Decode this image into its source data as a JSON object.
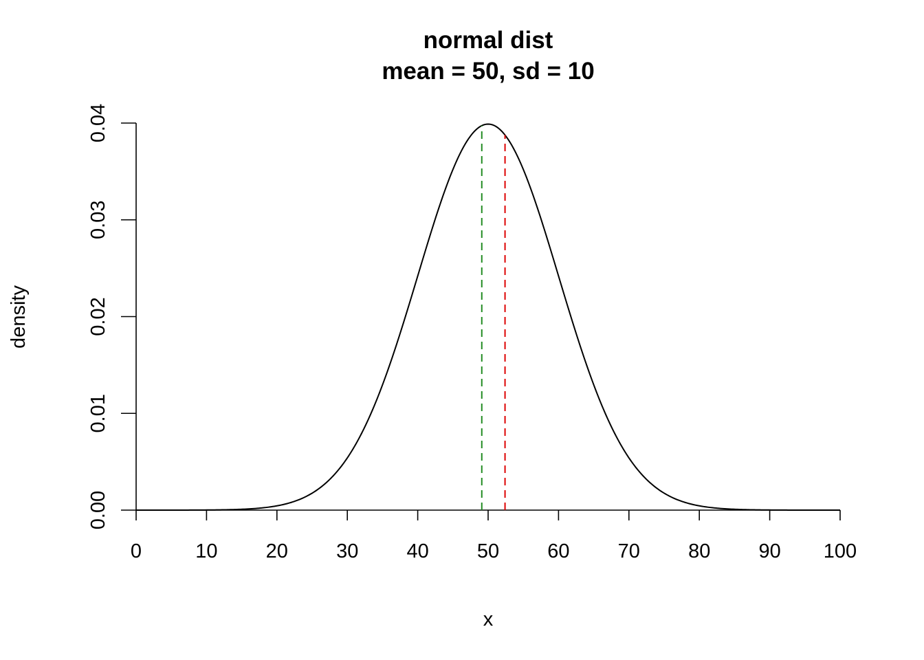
{
  "chart_data": {
    "type": "line",
    "title": "normal dist",
    "subtitle": "mean = 50, sd = 10",
    "xlabel": "x",
    "ylabel": "density",
    "xlim": [
      0,
      100
    ],
    "ylim": [
      0,
      0.04
    ],
    "x_ticks": [
      0,
      10,
      20,
      30,
      40,
      50,
      60,
      70,
      80,
      90,
      100
    ],
    "x_tick_labels": [
      "0",
      "10",
      "20",
      "30",
      "40",
      "50",
      "60",
      "70",
      "80",
      "90",
      "100"
    ],
    "y_ticks": [
      0,
      0.01,
      0.02,
      0.03,
      0.04
    ],
    "y_tick_labels": [
      "0.00",
      "0.01",
      "0.02",
      "0.03",
      "0.04"
    ],
    "grid": false,
    "distribution": {
      "family": "normal",
      "mean": 50,
      "sd": 10
    },
    "vlines": [
      {
        "x": 49.1,
        "color": "#228B22",
        "style": "dashed"
      },
      {
        "x": 52.4,
        "color": "#DD0000",
        "style": "dashed"
      }
    ],
    "curve_color": "#000000"
  }
}
